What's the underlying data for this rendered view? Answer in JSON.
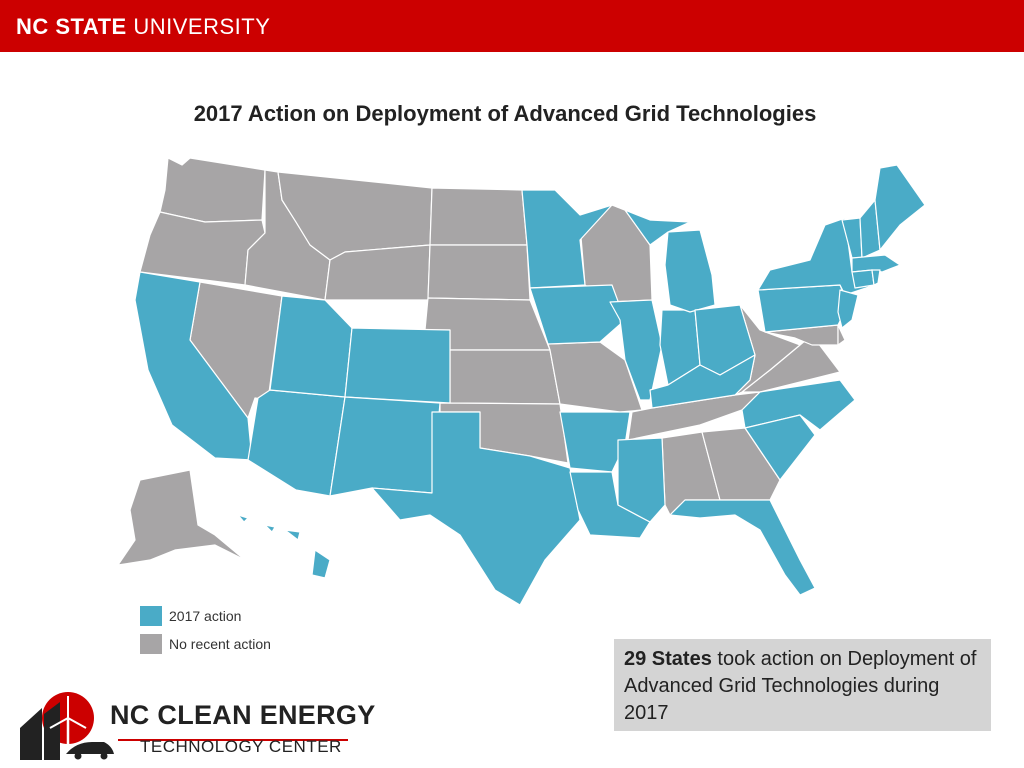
{
  "header": {
    "university_bold": "NC STATE",
    "university_light": "UNIVERSITY",
    "bar_color": "#cc0000"
  },
  "map": {
    "title": "2017 Action on Deployment of Advanced Grid Technologies",
    "colors": {
      "action": "#4aabc7",
      "no_action": "#a7a5a6",
      "border": "#ffffff"
    },
    "states_2017_action": [
      "CA",
      "AZ",
      "UT",
      "CO",
      "NM",
      "TX",
      "MN",
      "IA",
      "AR",
      "LA",
      "MS",
      "IL",
      "IN",
      "MI",
      "OH",
      "KY",
      "PA",
      "NY",
      "VT",
      "NH",
      "ME",
      "MA",
      "CT",
      "RI",
      "NJ",
      "NC",
      "SC",
      "FL",
      "HI"
    ],
    "states_no_recent_action": [
      "WA",
      "OR",
      "ID",
      "MT",
      "WY",
      "NV",
      "ND",
      "SD",
      "NE",
      "KS",
      "OK",
      "MO",
      "WI",
      "TN",
      "AL",
      "GA",
      "VA",
      "WV",
      "MD",
      "DE",
      "AK"
    ]
  },
  "legend": {
    "items": [
      {
        "label": "2017 action",
        "color": "#4aabc7"
      },
      {
        "label": "No recent action",
        "color": "#a7a5a6"
      }
    ]
  },
  "callout": {
    "count": "29 States",
    "text": "took action on Deployment of Advanced Grid Technologies during 2017"
  },
  "logo": {
    "title": "NC CLEAN ENERGY",
    "subtitle": "TECHNOLOGY CENTER",
    "accent_color": "#cc0000"
  }
}
